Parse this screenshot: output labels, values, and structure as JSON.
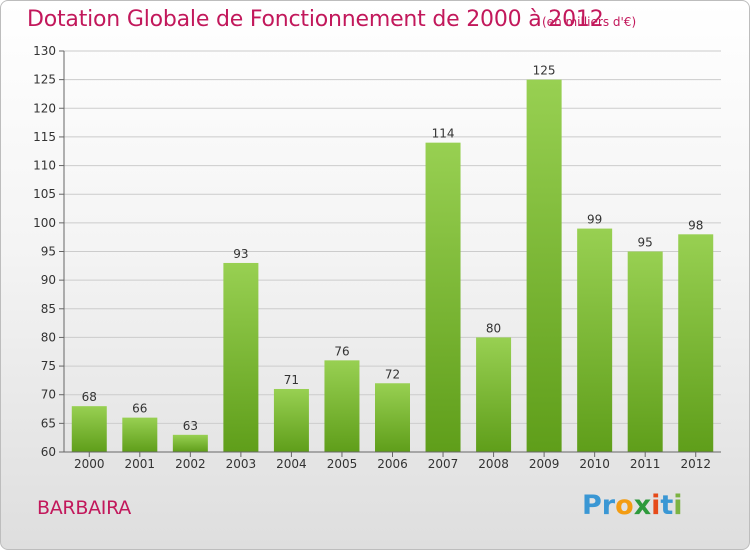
{
  "title": "Dotation Globale de Fonctionnement de 2000 à 2012",
  "unit": "(en milliers d'€)",
  "place": "BARBAIRA",
  "logo": {
    "letters": [
      "P",
      "r",
      "o",
      "x",
      "i",
      "t",
      "i"
    ],
    "colors": [
      "#3a97d4",
      "#3a97d4",
      "#f39c12",
      "#2e9a3c",
      "#e64a19",
      "#3a97d4",
      "#7cb342"
    ]
  },
  "colors": {
    "bar_top": "#98d052",
    "bar_bottom": "#5f9e1a",
    "title": "#c2185b",
    "grid": "#cccccc"
  },
  "chart_data": {
    "type": "bar",
    "title": "Dotation Globale de Fonctionnement de 2000 à 2012",
    "subtitle": "(en milliers d'€)",
    "categories": [
      "2000",
      "2001",
      "2002",
      "2003",
      "2004",
      "2005",
      "2006",
      "2007",
      "2008",
      "2009",
      "2010",
      "2011",
      "2012"
    ],
    "values": [
      68,
      66,
      63,
      93,
      71,
      76,
      72,
      114,
      80,
      125,
      99,
      95,
      98
    ],
    "ylim": [
      60,
      130
    ],
    "yticks": [
      60,
      65,
      70,
      75,
      80,
      85,
      90,
      95,
      100,
      105,
      110,
      115,
      120,
      125,
      130
    ],
    "grid": true,
    "data_labels": true
  }
}
